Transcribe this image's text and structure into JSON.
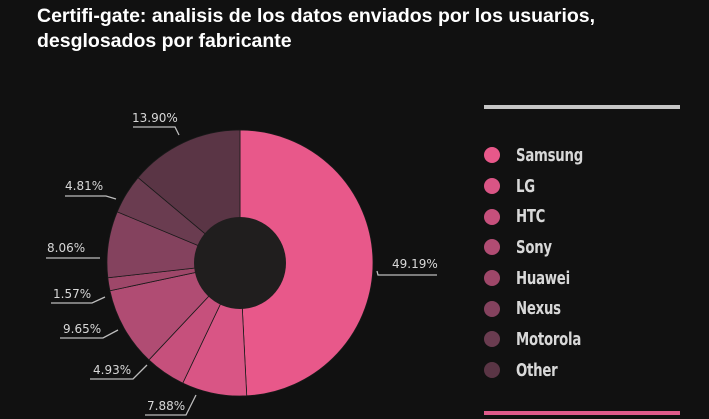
{
  "title": "Certifi-gate: analisis de los datos enviados por los usuarios, desglosados por fabricante",
  "chart_data": {
    "type": "pie",
    "variant": "donut",
    "title": "Certifi-gate: analisis de los datos enviados por los usuarios, desglosados por fabricante",
    "legend_position": "right",
    "categories": [
      "Samsung",
      "LG",
      "HTC",
      "Sony",
      "Huawei",
      "Nexus",
      "Motorola",
      "Other"
    ],
    "values": [
      49.19,
      7.88,
      4.93,
      9.65,
      1.57,
      8.06,
      4.81,
      13.9
    ],
    "labels": [
      "49.19%",
      "7.88%",
      "4.93%",
      "9.65%",
      "1.57%",
      "8.06%",
      "4.81%",
      "13.90%"
    ],
    "colors": [
      "#e8588a",
      "#d95585",
      "#c6507c",
      "#b04c73",
      "#9e4769",
      "#84425e",
      "#6a3c50",
      "#5a3545"
    ],
    "start": "top",
    "direction": "clockwise"
  },
  "legend": [
    {
      "label": "Samsung",
      "color": "#e8588a"
    },
    {
      "label": "LG",
      "color": "#d95585"
    },
    {
      "label": "HTC",
      "color": "#c6507c"
    },
    {
      "label": "Sony",
      "color": "#b04c73"
    },
    {
      "label": "Huawei",
      "color": "#9e4769"
    },
    {
      "label": "Nexus",
      "color": "#84425e"
    },
    {
      "label": "Motorola",
      "color": "#6a3c50"
    },
    {
      "label": "Other",
      "color": "#5a3545"
    }
  ],
  "colors": {
    "background": "#111111",
    "hole": "#201e1e",
    "legend_rule_top": "#c6c6c6",
    "legend_rule_bottom": "#e05a8b",
    "label_text": "#d8d8d8"
  }
}
